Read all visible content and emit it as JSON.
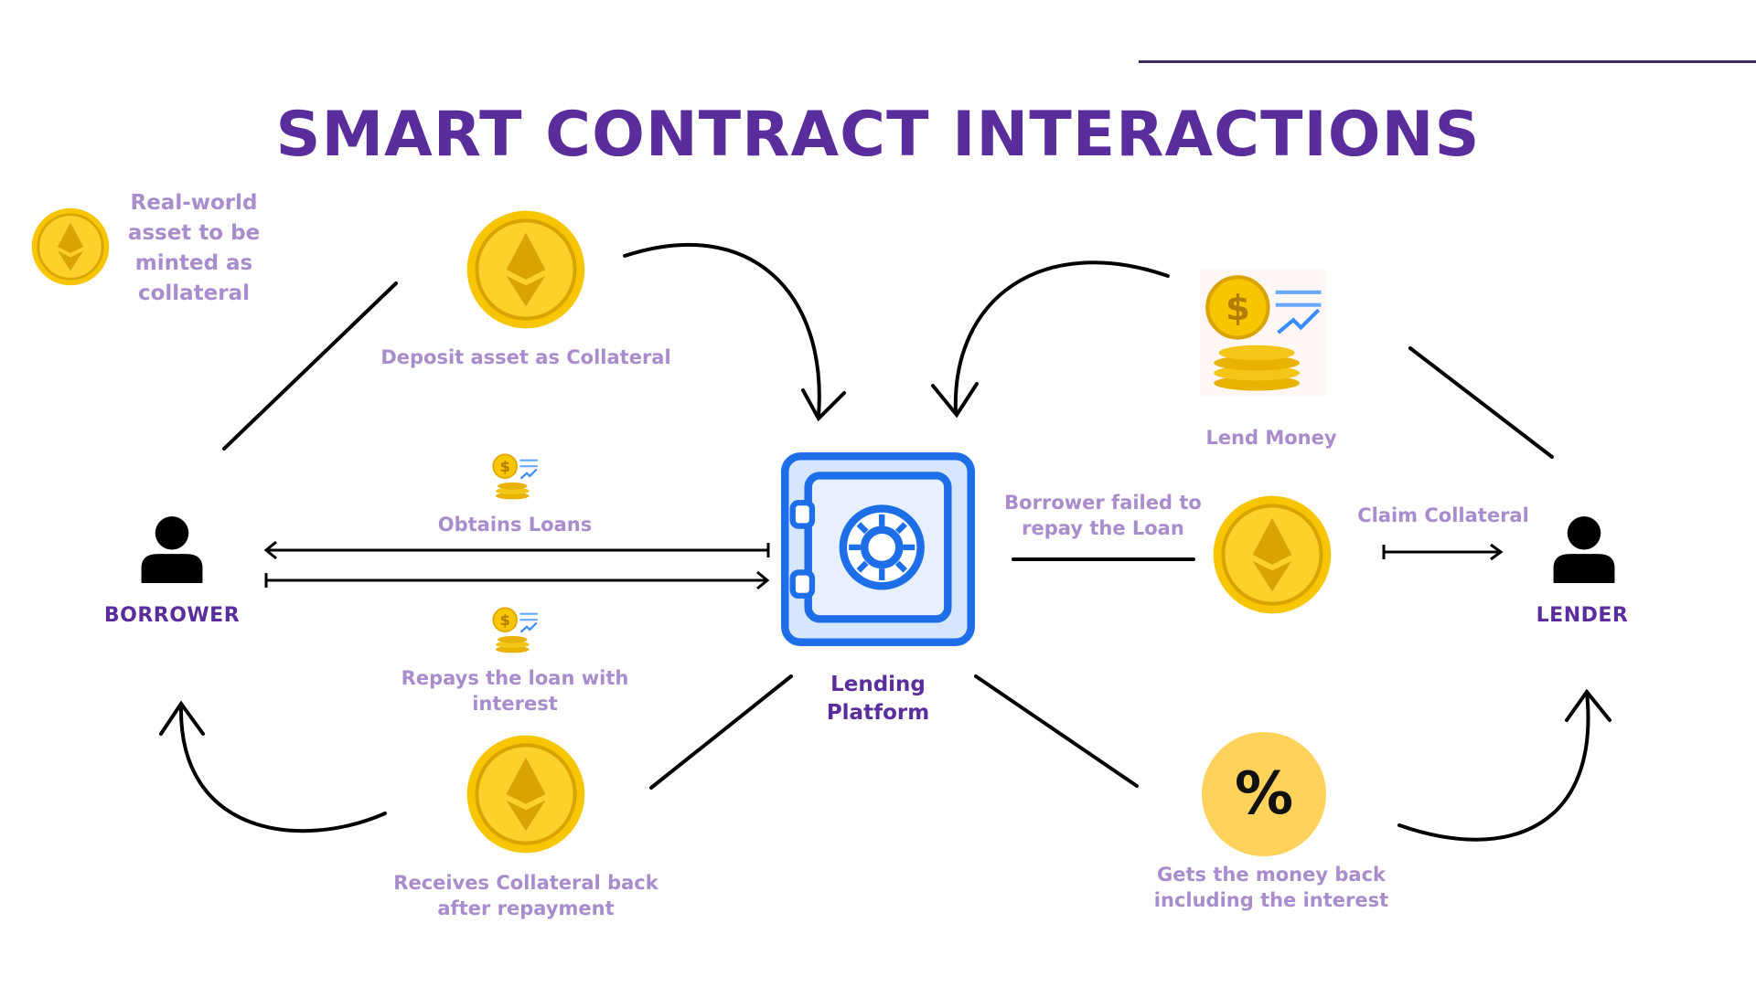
{
  "title": "SMART CONTRACT INTERACTIONS",
  "colors": {
    "title": "#5a2d9c",
    "label": "#a98ccb",
    "coin": "#f7c600",
    "coin_dark": "#d9a300",
    "vault": "#1e6ee8",
    "line": "#000000",
    "accent_line": "#3c2a5a"
  },
  "nodes": {
    "borrower": "BORROWER",
    "lender": "LENDER",
    "platform_line1": "Lending",
    "platform_line2": "Platform"
  },
  "labels": {
    "real_world_1": "Real-world",
    "real_world_2": "asset to be",
    "real_world_3": "minted as",
    "real_world_4": "collateral",
    "deposit": "Deposit asset as Collateral",
    "obtains": "Obtains Loans",
    "repays_1": "Repays the loan with",
    "repays_2": "interest",
    "receives_1": "Receives Collateral back",
    "receives_2": "after repayment",
    "lend_money": "Lend Money",
    "failed_1": "Borrower failed to",
    "failed_2": "repay the Loan",
    "claim": "Claim Collateral",
    "gets_back_1": "Gets the money back",
    "gets_back_2": "including the interest",
    "percent_symbol": "%"
  },
  "icons": [
    "ethereum-coin-icon",
    "money-growth-icon",
    "vault-icon",
    "user-icon",
    "percent-icon"
  ]
}
